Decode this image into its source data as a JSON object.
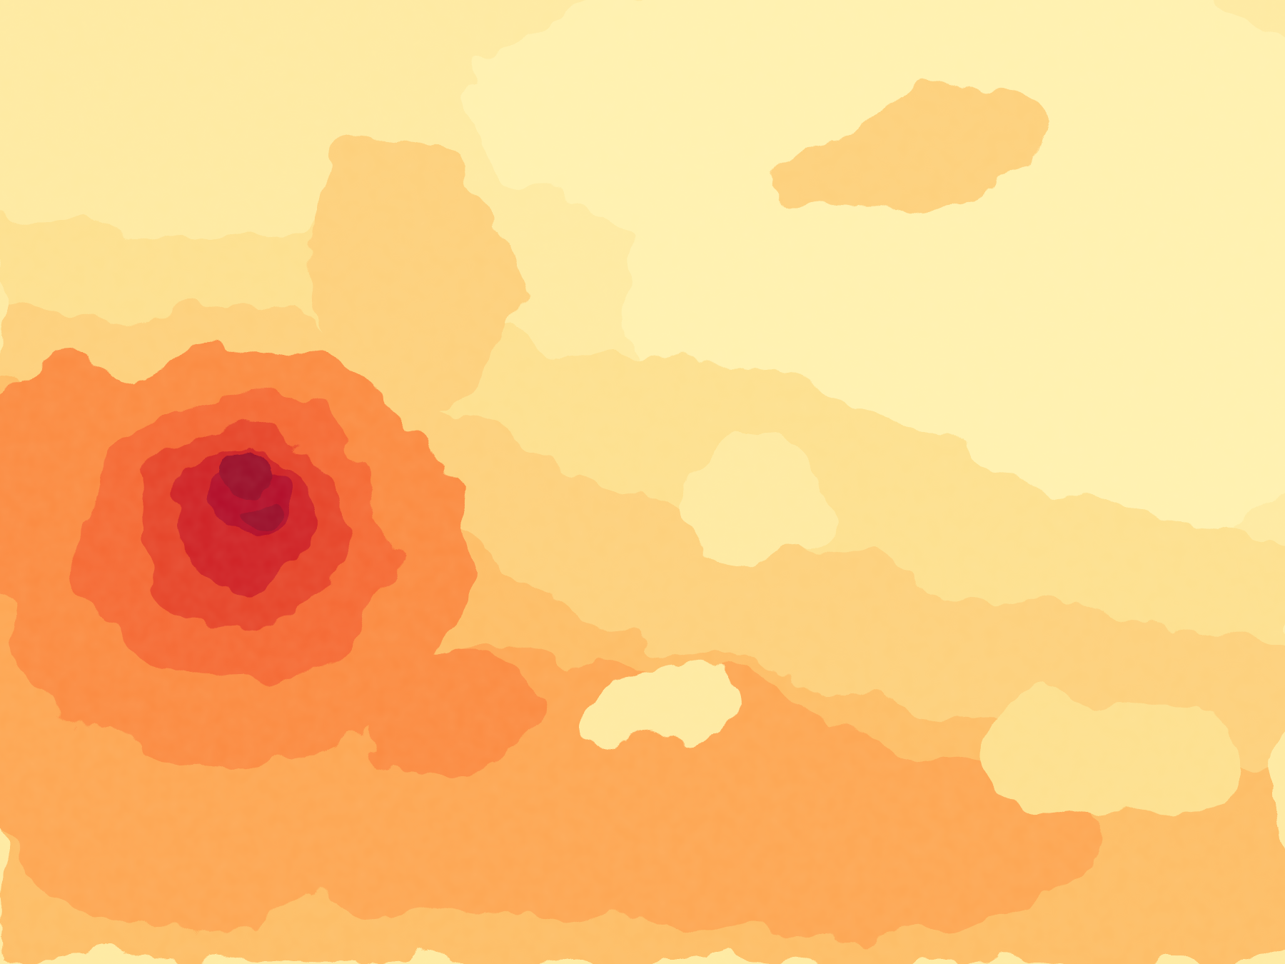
{
  "map": {
    "kind": "raster-heatmap",
    "palette": [
      "#fff1b0",
      "#feeaa2",
      "#fde08f",
      "#fdd07c",
      "#fdbd66",
      "#fda653",
      "#fb8b43",
      "#f56a35",
      "#e6452a",
      "#cf2325",
      "#b20f2a",
      "#99072c"
    ],
    "hotspots": [
      {
        "name": "primary-core",
        "level": 11
      },
      {
        "name": "secondary-core",
        "level": 8
      },
      {
        "name": "lower-band",
        "level": 6
      }
    ],
    "legend": "",
    "title": ""
  }
}
